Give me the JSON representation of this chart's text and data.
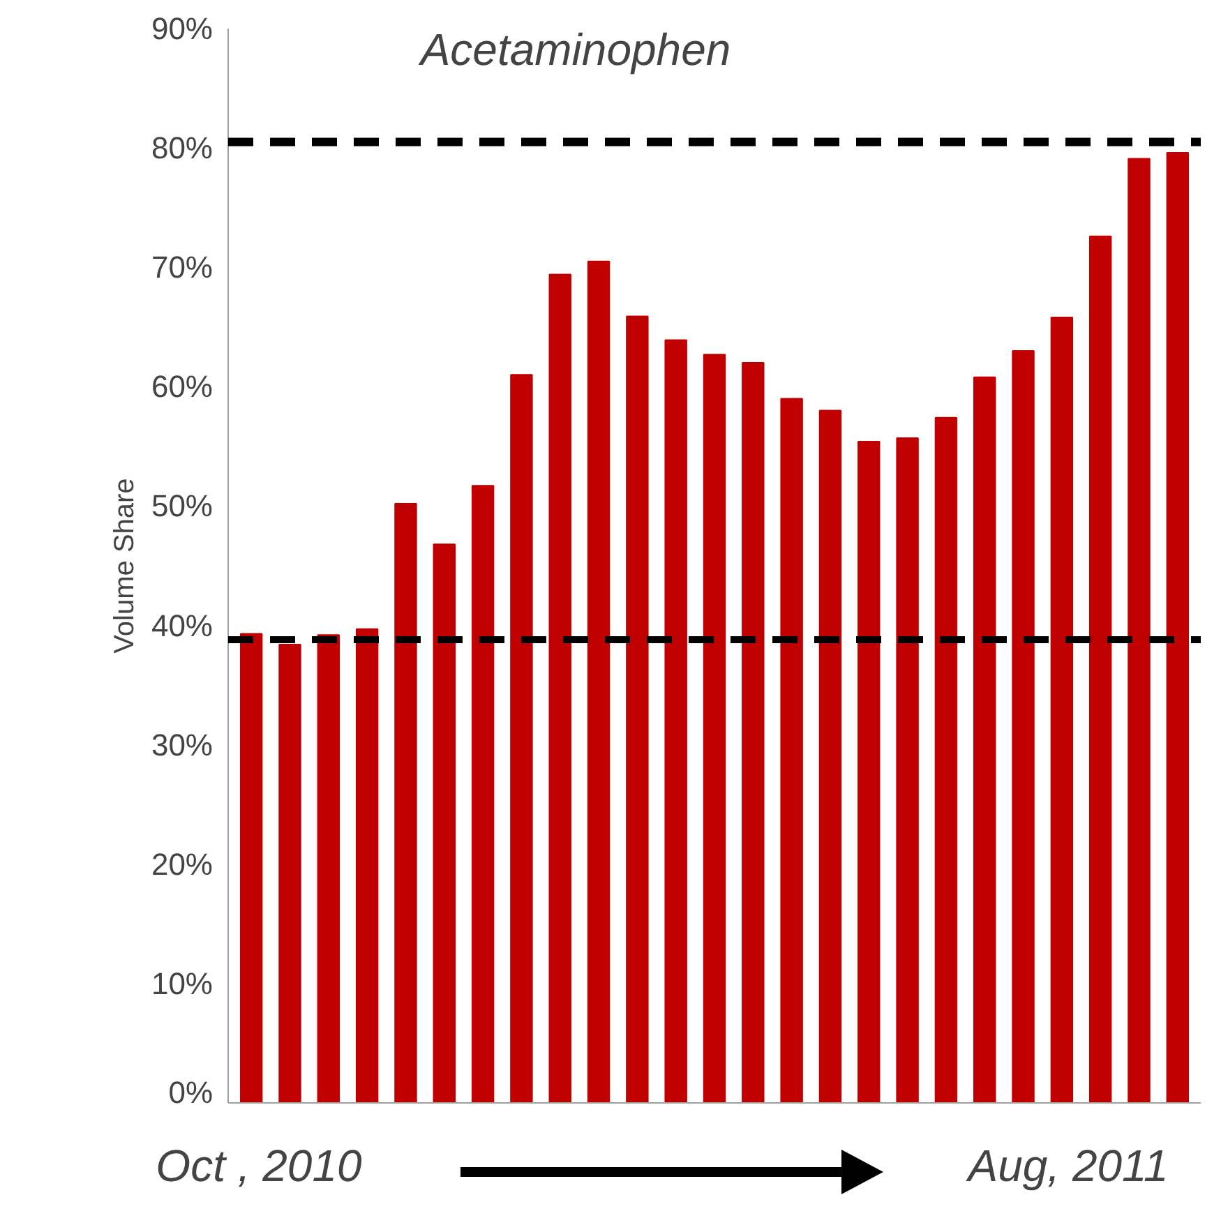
{
  "chart_data": {
    "type": "bar",
    "title": "Acetaminophen",
    "ylabel": "Volume Share",
    "categories": [
      null,
      null,
      null,
      null,
      null,
      null,
      null,
      null,
      null,
      null,
      null,
      null,
      null,
      null,
      null,
      null,
      null,
      null,
      null,
      null,
      null,
      null,
      null,
      null,
      null
    ],
    "values": [
      39.3,
      38.4,
      39.2,
      39.7,
      50.2,
      46.8,
      51.7,
      61.0,
      69.4,
      70.5,
      65.9,
      63.9,
      62.7,
      62.0,
      59.0,
      58.0,
      55.4,
      55.7,
      57.4,
      60.8,
      63.0,
      65.8,
      72.6,
      79.1,
      79.6
    ],
    "color": "#c00000",
    "ylim": [
      0,
      90
    ],
    "yticks": [
      {
        "value": 0,
        "label": "0%"
      },
      {
        "value": 10,
        "label": "10%"
      },
      {
        "value": 20,
        "label": "20%"
      },
      {
        "value": 30,
        "label": "30%"
      },
      {
        "value": 40,
        "label": "40%"
      },
      {
        "value": 50,
        "label": "50%"
      },
      {
        "value": 60,
        "label": "60%"
      },
      {
        "value": 70,
        "label": "70%"
      },
      {
        "value": 80,
        "label": "80%"
      },
      {
        "value": 90,
        "label": "90%"
      }
    ],
    "ref_lines": [
      {
        "axis": "y",
        "value": 80.5,
        "label": null,
        "color": "#000000",
        "line_style": "dashed"
      },
      {
        "axis": "y",
        "value": 38.8,
        "label": null,
        "color": "#000000",
        "line_style": "dashed"
      }
    ],
    "annotations": [
      "Oct , 2010",
      "Aug, 2011"
    ],
    "grid": false,
    "tick_labels": "y"
  }
}
